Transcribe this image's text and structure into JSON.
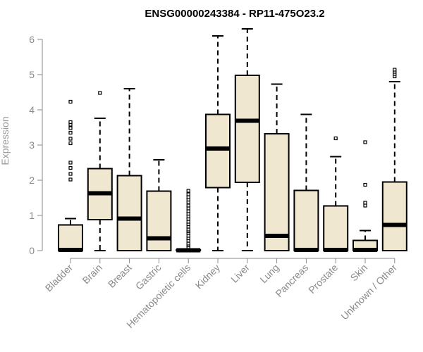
{
  "chart_data": {
    "type": "boxplot",
    "title": "ENSG00000243384 - RP11-475O23.2",
    "xlabel": "",
    "ylabel": "Expression",
    "ylim": [
      0,
      6.3
    ],
    "yticks": [
      0,
      1,
      2,
      3,
      4,
      5,
      6
    ],
    "box_fill": "#efe7d0",
    "stroke_color": "#000000",
    "categories": [
      "Bladder",
      "Brain",
      "Breast",
      "Gastric",
      "Hematopoietic cells",
      "Kidney",
      "Liver",
      "Lung",
      "Pancreas",
      "Prostate",
      "Skin",
      "Unknown / Other"
    ],
    "boxes": [
      {
        "name": "Bladder",
        "whisker_low": 0,
        "q1": 0,
        "median": 0.02,
        "q3": 0.73,
        "whisker_high": 0.91,
        "outliers": [
          2.02,
          2.18,
          2.35,
          2.5,
          3.05,
          3.18,
          3.35,
          3.48,
          3.58,
          3.65,
          4.23
        ]
      },
      {
        "name": "Brain",
        "whisker_low": 0,
        "q1": 0.88,
        "median": 1.63,
        "q3": 2.33,
        "whisker_high": 3.76,
        "outliers": [
          4.48
        ]
      },
      {
        "name": "Breast",
        "whisker_low": 0,
        "q1": 0,
        "median": 0.91,
        "q3": 2.13,
        "whisker_high": 4.6,
        "outliers": []
      },
      {
        "name": "Gastric",
        "whisker_low": 0,
        "q1": 0,
        "median": 0.35,
        "q3": 1.69,
        "whisker_high": 2.58,
        "outliers": []
      },
      {
        "name": "Hematopoietic cells",
        "whisker_low": 0,
        "q1": 0,
        "median": 0.01,
        "q3": 0.02,
        "whisker_high": 0.03,
        "outliers": [
          0.1,
          0.15,
          0.2,
          0.28,
          0.35,
          0.42,
          0.5,
          0.55,
          0.6,
          0.68,
          0.75,
          0.82,
          0.9,
          0.97,
          1.05,
          1.12,
          1.2,
          1.28,
          1.37,
          1.45,
          1.52,
          1.6,
          1.7
        ]
      },
      {
        "name": "Kidney",
        "whisker_low": 0,
        "q1": 1.79,
        "median": 2.9,
        "q3": 3.87,
        "whisker_high": 6.1,
        "outliers": []
      },
      {
        "name": "Liver",
        "whisker_low": 0,
        "q1": 1.94,
        "median": 3.69,
        "q3": 4.98,
        "whisker_high": 6.3,
        "outliers": []
      },
      {
        "name": "Lung",
        "whisker_low": 0,
        "q1": 0,
        "median": 0.42,
        "q3": 3.32,
        "whisker_high": 4.73,
        "outliers": []
      },
      {
        "name": "Pancreas",
        "whisker_low": 0,
        "q1": 0,
        "median": 0.02,
        "q3": 1.71,
        "whisker_high": 3.87,
        "outliers": []
      },
      {
        "name": "Prostate",
        "whisker_low": 0,
        "q1": 0,
        "median": 0.02,
        "q3": 1.27,
        "whisker_high": 2.67,
        "outliers": [
          3.19
        ]
      },
      {
        "name": "Skin",
        "whisker_low": 0,
        "q1": 0,
        "median": 0.02,
        "q3": 0.29,
        "whisker_high": 0.57,
        "outliers": [
          1.28,
          1.36,
          1.87,
          3.08
        ]
      },
      {
        "name": "Unknown / Other",
        "whisker_low": 0,
        "q1": 0,
        "median": 0.73,
        "q3": 1.95,
        "whisker_high": 4.8,
        "outliers": [
          4.95,
          5.02,
          5.08,
          5.14
        ]
      }
    ]
  }
}
